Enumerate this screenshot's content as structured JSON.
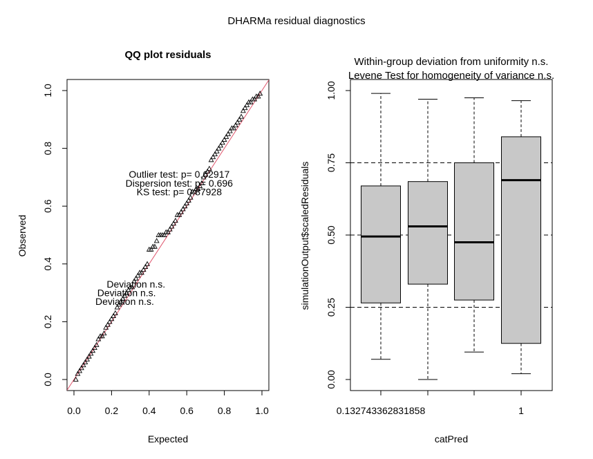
{
  "title": "DHARMa residual diagnostics",
  "chart_data": [
    {
      "type": "scatter",
      "title": "QQ plot residuals",
      "xlabel": "Expected",
      "ylabel": "Observed",
      "xlim": [
        0,
        1
      ],
      "ylim": [
        0,
        1
      ],
      "xticks": [
        "0.0",
        "0.2",
        "0.4",
        "0.6",
        "0.8",
        "1.0"
      ],
      "yticks": [
        "0.0",
        "0.2",
        "0.4",
        "0.6",
        "0.8",
        "1.0"
      ],
      "marker": "triangle-open",
      "reference_line": {
        "from": [
          0,
          0
        ],
        "to": [
          1,
          1
        ],
        "color": "#DF536B"
      },
      "annotations": [
        {
          "text": "Outlier test: p= 0.62917",
          "x": 0.56,
          "y": 0.71
        },
        {
          "text": "Dispersion test: p= 0.696",
          "x": 0.56,
          "y": 0.68
        },
        {
          "text": "KS test: p= 0.87928",
          "x": 0.56,
          "y": 0.65
        },
        {
          "text": "Deviation  n.s.",
          "x": 0.33,
          "y": 0.33
        },
        {
          "text": "Deviation  n.s.",
          "x": 0.28,
          "y": 0.3
        },
        {
          "text": "Deviation  n.s.",
          "x": 0.27,
          "y": 0.27
        }
      ],
      "points": {
        "x": [
          0.01,
          0.02,
          0.03,
          0.04,
          0.05,
          0.06,
          0.07,
          0.08,
          0.09,
          0.1,
          0.11,
          0.12,
          0.13,
          0.14,
          0.15,
          0.16,
          0.17,
          0.18,
          0.19,
          0.2,
          0.21,
          0.22,
          0.23,
          0.24,
          0.25,
          0.26,
          0.27,
          0.28,
          0.29,
          0.3,
          0.31,
          0.32,
          0.33,
          0.34,
          0.35,
          0.36,
          0.37,
          0.38,
          0.39,
          0.4,
          0.41,
          0.42,
          0.43,
          0.44,
          0.45,
          0.46,
          0.47,
          0.48,
          0.49,
          0.5,
          0.51,
          0.52,
          0.53,
          0.54,
          0.55,
          0.56,
          0.57,
          0.58,
          0.59,
          0.6,
          0.61,
          0.62,
          0.63,
          0.64,
          0.65,
          0.66,
          0.67,
          0.68,
          0.69,
          0.7,
          0.71,
          0.72,
          0.73,
          0.74,
          0.75,
          0.76,
          0.77,
          0.78,
          0.79,
          0.8,
          0.81,
          0.82,
          0.83,
          0.84,
          0.85,
          0.86,
          0.87,
          0.88,
          0.89,
          0.9,
          0.91,
          0.92,
          0.93,
          0.94,
          0.95,
          0.96,
          0.97,
          0.98,
          0.99
        ],
        "y": [
          0.0,
          0.02,
          0.03,
          0.04,
          0.05,
          0.06,
          0.07,
          0.08,
          0.09,
          0.1,
          0.11,
          0.12,
          0.14,
          0.15,
          0.15,
          0.16,
          0.18,
          0.19,
          0.2,
          0.21,
          0.22,
          0.23,
          0.25,
          0.26,
          0.27,
          0.28,
          0.29,
          0.3,
          0.31,
          0.32,
          0.32,
          0.34,
          0.35,
          0.36,
          0.37,
          0.37,
          0.38,
          0.39,
          0.4,
          0.45,
          0.45,
          0.46,
          0.46,
          0.48,
          0.5,
          0.5,
          0.5,
          0.5,
          0.51,
          0.51,
          0.52,
          0.53,
          0.54,
          0.55,
          0.57,
          0.57,
          0.58,
          0.59,
          0.6,
          0.61,
          0.62,
          0.63,
          0.65,
          0.65,
          0.66,
          0.66,
          0.67,
          0.68,
          0.7,
          0.71,
          0.72,
          0.73,
          0.76,
          0.77,
          0.78,
          0.79,
          0.8,
          0.81,
          0.82,
          0.83,
          0.84,
          0.85,
          0.86,
          0.87,
          0.87,
          0.88,
          0.89,
          0.9,
          0.91,
          0.93,
          0.94,
          0.95,
          0.96,
          0.96,
          0.97,
          0.97,
          0.98,
          0.98,
          0.99
        ]
      }
    },
    {
      "type": "boxplot",
      "title_line1": "Within-group deviation from uniformity n.s.",
      "title_line2": "Levene Test for homogeneity of variance n.s.",
      "xlabel": "catPred",
      "ylabel": "simulationOutput$scaledResiduals",
      "ylim": [
        0,
        1
      ],
      "yticks": [
        "0.00",
        "0.25",
        "0.50",
        "0.75",
        "1.00"
      ],
      "xtick_labels": [
        "0.132743362831858",
        "",
        "",
        "1"
      ],
      "reference_lines": [
        0.25,
        0.5,
        0.75
      ],
      "box_color": "#C8C8C8",
      "boxes": [
        {
          "whisker_low": 0.07,
          "q1": 0.265,
          "median": 0.495,
          "q3": 0.67,
          "whisker_high": 0.99
        },
        {
          "whisker_low": 0.0,
          "q1": 0.33,
          "median": 0.53,
          "q3": 0.685,
          "whisker_high": 0.97
        },
        {
          "whisker_low": 0.095,
          "q1": 0.275,
          "median": 0.475,
          "q3": 0.75,
          "whisker_high": 0.975
        },
        {
          "whisker_low": 0.02,
          "q1": 0.125,
          "median": 0.69,
          "q3": 0.84,
          "whisker_high": 0.965
        }
      ]
    }
  ]
}
